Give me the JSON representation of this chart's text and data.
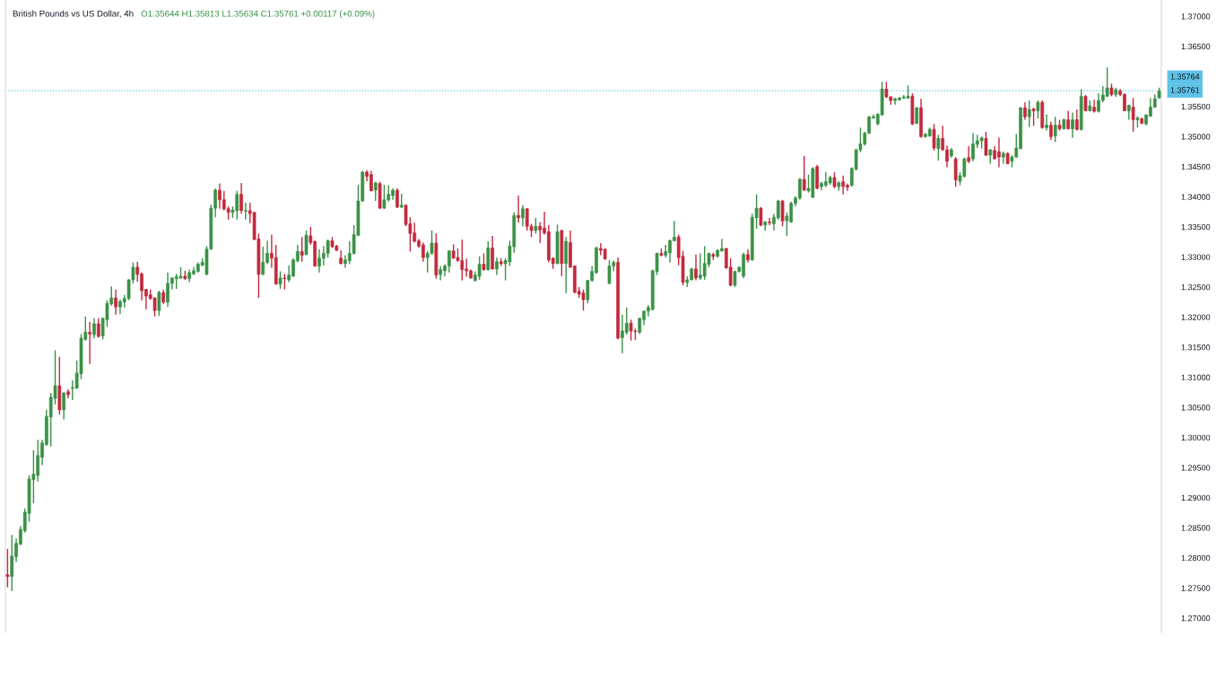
{
  "chart_data": {
    "type": "candlestick",
    "title": "British Pounds vs US Dollar, 4h",
    "subtitle": "O1.35644 H1.35813 L1.35634 C1.35761 +0.00117 (+0.09%)",
    "categories": [
      null,
      null,
      null,
      null,
      null,
      null,
      null,
      null,
      null,
      null,
      null,
      null,
      null,
      null,
      null,
      null,
      null,
      null,
      null,
      null,
      null,
      null,
      null,
      null,
      null,
      null,
      null,
      null,
      null,
      null,
      null,
      null,
      null,
      null,
      null,
      null,
      null,
      null,
      null,
      null,
      null,
      null,
      null,
      null,
      null,
      null,
      null,
      null,
      null,
      null,
      null,
      null,
      null,
      null,
      null,
      null,
      null,
      null,
      null,
      null,
      null,
      null,
      null,
      null,
      null,
      null,
      null,
      null,
      null,
      null,
      null,
      null,
      null,
      null,
      null,
      null,
      null,
      null,
      null,
      null,
      null,
      null,
      null,
      null,
      null,
      null,
      null,
      null,
      null,
      null,
      null,
      null,
      null,
      null,
      null,
      null,
      null,
      null,
      null,
      null,
      null,
      null,
      null,
      null,
      null,
      null,
      null,
      null,
      null,
      null,
      null,
      null,
      null,
      null,
      null,
      null,
      null,
      null,
      null,
      null,
      null,
      null,
      null,
      null,
      null,
      null,
      null,
      null,
      null,
      null,
      null,
      null,
      null,
      null,
      null,
      null,
      null,
      null,
      null,
      null,
      null,
      null,
      null,
      null,
      null,
      null,
      null,
      null,
      null,
      null,
      null,
      null,
      null,
      null,
      null,
      null,
      null,
      null,
      null,
      null,
      null,
      null,
      null,
      null,
      null,
      null,
      null,
      null,
      null,
      null,
      null,
      null,
      null,
      null,
      null,
      null,
      null,
      null,
      null,
      null,
      null,
      null,
      null,
      null,
      null,
      null,
      null,
      null,
      null,
      null,
      null,
      null,
      null,
      null,
      null,
      null,
      null,
      null,
      null,
      null,
      null,
      null,
      null,
      null,
      null,
      null,
      null,
      null,
      null,
      null,
      null,
      null,
      null,
      null,
      null,
      null,
      null,
      null,
      null,
      null,
      null,
      null,
      null,
      null,
      null,
      null,
      null,
      null,
      null,
      null,
      null,
      null,
      null,
      null,
      null,
      null,
      null,
      null,
      null,
      null,
      null,
      null,
      null,
      null,
      null,
      null,
      null,
      null,
      null,
      null,
      null,
      null,
      null,
      null,
      null,
      null,
      null,
      null,
      null,
      null,
      null,
      null,
      null,
      null,
      null,
      null,
      null
    ],
    "ohlc": [
      [
        1.2772,
        1.2815,
        1.2751,
        1.2769
      ],
      [
        1.2769,
        1.2838,
        1.2745,
        1.2803
      ],
      [
        1.2802,
        1.2832,
        1.2793,
        1.2824
      ],
      [
        1.2823,
        1.2853,
        1.2821,
        1.2847
      ],
      [
        1.2845,
        1.2882,
        1.2842,
        1.2876
      ],
      [
        1.2874,
        1.2937,
        1.286,
        1.2931
      ],
      [
        1.293,
        1.2979,
        1.2891,
        1.2939
      ],
      [
        1.2937,
        1.2996,
        1.2927,
        1.297
      ],
      [
        1.2967,
        1.2996,
        1.2954,
        1.2991
      ],
      [
        1.2988,
        1.3046,
        1.2987,
        1.3035
      ],
      [
        1.3034,
        1.3074,
        1.2985,
        1.3067
      ],
      [
        1.3065,
        1.3145,
        1.3055,
        1.3086
      ],
      [
        1.3086,
        1.3134,
        1.3038,
        1.3046
      ],
      [
        1.3046,
        1.3076,
        1.303,
        1.3074
      ],
      [
        1.3076,
        1.308,
        1.3065,
        1.3071
      ],
      [
        1.3082,
        1.3095,
        1.3062,
        1.3083
      ],
      [
        1.3082,
        1.3128,
        1.3081,
        1.3107
      ],
      [
        1.3106,
        1.3172,
        1.3097,
        1.3165
      ],
      [
        1.3163,
        1.3201,
        1.3161,
        1.3175
      ],
      [
        1.3175,
        1.3192,
        1.3122,
        1.3172
      ],
      [
        1.3171,
        1.3198,
        1.3165,
        1.3189
      ],
      [
        1.3189,
        1.3198,
        1.3166,
        1.3168
      ],
      [
        1.3169,
        1.3199,
        1.3163,
        1.3198
      ],
      [
        1.3196,
        1.3228,
        1.3184,
        1.3223
      ],
      [
        1.3222,
        1.3251,
        1.3219,
        1.3232
      ],
      [
        1.3232,
        1.3246,
        1.3204,
        1.3217
      ],
      [
        1.3217,
        1.3229,
        1.3205,
        1.3226
      ],
      [
        1.3225,
        1.3237,
        1.3216,
        1.3231
      ],
      [
        1.3231,
        1.3263,
        1.3228,
        1.3262
      ],
      [
        1.3262,
        1.3291,
        1.3256,
        1.3283
      ],
      [
        1.3283,
        1.3292,
        1.3259,
        1.3271
      ],
      [
        1.3272,
        1.3274,
        1.3228,
        1.3244
      ],
      [
        1.3246,
        1.3247,
        1.3213,
        1.3235
      ],
      [
        1.3237,
        1.3246,
        1.3229,
        1.3231
      ],
      [
        1.3232,
        1.3233,
        1.3201,
        1.3211
      ],
      [
        1.3211,
        1.3244,
        1.3202,
        1.3241
      ],
      [
        1.3241,
        1.3246,
        1.3222,
        1.3225
      ],
      [
        1.3225,
        1.3274,
        1.3217,
        1.3256
      ],
      [
        1.3256,
        1.3266,
        1.3246,
        1.3265
      ],
      [
        1.3264,
        1.3272,
        1.3247,
        1.3267
      ],
      [
        1.3265,
        1.3283,
        1.3264,
        1.3268
      ],
      [
        1.3268,
        1.3277,
        1.3262,
        1.3264
      ],
      [
        1.3264,
        1.3279,
        1.3258,
        1.3274
      ],
      [
        1.3272,
        1.3283,
        1.327,
        1.3277
      ],
      [
        1.3276,
        1.3291,
        1.3274,
        1.3288
      ],
      [
        1.3286,
        1.3298,
        1.3285,
        1.3291
      ],
      [
        1.3271,
        1.3318,
        1.327,
        1.3313
      ],
      [
        1.3313,
        1.3387,
        1.3312,
        1.3381
      ],
      [
        1.3381,
        1.3414,
        1.3366,
        1.3411
      ],
      [
        1.3411,
        1.3422,
        1.338,
        1.3395
      ],
      [
        1.3395,
        1.341,
        1.3377,
        1.338
      ],
      [
        1.338,
        1.3384,
        1.3362,
        1.3374
      ],
      [
        1.3374,
        1.3384,
        1.3365,
        1.3378
      ],
      [
        1.3377,
        1.341,
        1.3362,
        1.3404
      ],
      [
        1.3404,
        1.3423,
        1.3372,
        1.3377
      ],
      [
        1.3376,
        1.339,
        1.3362,
        1.3377
      ],
      [
        1.3377,
        1.339,
        1.3356,
        1.3372
      ],
      [
        1.3374,
        1.3375,
        1.3328,
        1.3329
      ],
      [
        1.333,
        1.3339,
        1.3232,
        1.3271
      ],
      [
        1.3271,
        1.3317,
        1.327,
        1.3291
      ],
      [
        1.3291,
        1.3327,
        1.3288,
        1.3306
      ],
      [
        1.3306,
        1.3337,
        1.3282,
        1.3298
      ],
      [
        1.3299,
        1.332,
        1.3254,
        1.3255
      ],
      [
        1.3255,
        1.3276,
        1.3247,
        1.3265
      ],
      [
        1.3265,
        1.3272,
        1.3246,
        1.3264
      ],
      [
        1.3262,
        1.3286,
        1.3258,
        1.327
      ],
      [
        1.3268,
        1.3298,
        1.3267,
        1.3295
      ],
      [
        1.3294,
        1.332,
        1.3291,
        1.3309
      ],
      [
        1.3309,
        1.3333,
        1.3292,
        1.3303
      ],
      [
        1.3304,
        1.3344,
        1.3303,
        1.3336
      ],
      [
        1.3335,
        1.335,
        1.332,
        1.3324
      ],
      [
        1.3326,
        1.3327,
        1.3284,
        1.3285
      ],
      [
        1.3285,
        1.3313,
        1.3274,
        1.3298
      ],
      [
        1.3298,
        1.3318,
        1.3286,
        1.3306
      ],
      [
        1.3306,
        1.3329,
        1.3299,
        1.3327
      ],
      [
        1.3327,
        1.3333,
        1.3315,
        1.3317
      ],
      [
        1.3318,
        1.332,
        1.331,
        1.3311
      ],
      [
        1.3298,
        1.3311,
        1.3288,
        1.3289
      ],
      [
        1.3289,
        1.3303,
        1.3282,
        1.3295
      ],
      [
        1.3294,
        1.3326,
        1.3288,
        1.3306
      ],
      [
        1.3306,
        1.3353,
        1.3304,
        1.3337
      ],
      [
        1.3336,
        1.342,
        1.3335,
        1.3393
      ],
      [
        1.3393,
        1.3443,
        1.3392,
        1.3441
      ],
      [
        1.3441,
        1.3444,
        1.3426,
        1.3434
      ],
      [
        1.3437,
        1.3443,
        1.3409,
        1.341
      ],
      [
        1.3411,
        1.3425,
        1.3393,
        1.3423
      ],
      [
        1.3422,
        1.3425,
        1.338,
        1.3381
      ],
      [
        1.3381,
        1.342,
        1.338,
        1.3395
      ],
      [
        1.3395,
        1.3419,
        1.3392,
        1.3404
      ],
      [
        1.3402,
        1.3414,
        1.3395,
        1.3411
      ],
      [
        1.3411,
        1.3414,
        1.3381,
        1.3383
      ],
      [
        1.3383,
        1.3405,
        1.3381,
        1.3386
      ],
      [
        1.3386,
        1.3387,
        1.3351,
        1.3354
      ],
      [
        1.3355,
        1.3366,
        1.3309,
        1.3339
      ],
      [
        1.334,
        1.3357,
        1.3324,
        1.3326
      ],
      [
        1.3327,
        1.333,
        1.3315,
        1.3318
      ],
      [
        1.332,
        1.3324,
        1.3292,
        1.3299
      ],
      [
        1.3299,
        1.331,
        1.3274,
        1.3306
      ],
      [
        1.3306,
        1.3344,
        1.3304,
        1.3323
      ],
      [
        1.3323,
        1.3339,
        1.3264,
        1.327
      ],
      [
        1.3271,
        1.3285,
        1.3261,
        1.3279
      ],
      [
        1.3277,
        1.3288,
        1.3268,
        1.3285
      ],
      [
        1.3285,
        1.3311,
        1.3274,
        1.331
      ],
      [
        1.331,
        1.3321,
        1.3297,
        1.3298
      ],
      [
        1.3299,
        1.3314,
        1.3292,
        1.3294
      ],
      [
        1.3294,
        1.3329,
        1.3261,
        1.3279
      ],
      [
        1.328,
        1.3297,
        1.3267,
        1.3277
      ],
      [
        1.3277,
        1.3279,
        1.3264,
        1.3265
      ],
      [
        1.3261,
        1.3276,
        1.3259,
        1.327
      ],
      [
        1.3268,
        1.3301,
        1.3262,
        1.3288
      ],
      [
        1.3288,
        1.3306,
        1.3277,
        1.3279
      ],
      [
        1.3279,
        1.3326,
        1.3277,
        1.3315
      ],
      [
        1.3315,
        1.3335,
        1.3279,
        1.328
      ],
      [
        1.328,
        1.3299,
        1.327,
        1.3292
      ],
      [
        1.3292,
        1.3298,
        1.3285,
        1.3289
      ],
      [
        1.3289,
        1.3298,
        1.3261,
        1.3294
      ],
      [
        1.3292,
        1.3327,
        1.3285,
        1.3318
      ],
      [
        1.3317,
        1.3374,
        1.3307,
        1.3369
      ],
      [
        1.3369,
        1.3402,
        1.3357,
        1.3365
      ],
      [
        1.3365,
        1.3386,
        1.3351,
        1.338
      ],
      [
        1.338,
        1.3381,
        1.3344,
        1.3351
      ],
      [
        1.3351,
        1.3355,
        1.3333,
        1.3344
      ],
      [
        1.3344,
        1.3365,
        1.3339,
        1.3351
      ],
      [
        1.3351,
        1.3358,
        1.3323,
        1.3345
      ],
      [
        1.3348,
        1.3375,
        1.3337,
        1.334
      ],
      [
        1.3342,
        1.3353,
        1.3291,
        1.3295
      ],
      [
        1.3298,
        1.3299,
        1.328,
        1.3289
      ],
      [
        1.3289,
        1.3354,
        1.3288,
        1.3342
      ],
      [
        1.3344,
        1.3345,
        1.3268,
        1.3289
      ],
      [
        1.3289,
        1.3333,
        1.324,
        1.3326
      ],
      [
        1.3324,
        1.3344,
        1.3282,
        1.3283
      ],
      [
        1.3285,
        1.3286,
        1.324,
        1.3241
      ],
      [
        1.3243,
        1.325,
        1.3232,
        1.3238
      ],
      [
        1.324,
        1.3246,
        1.3211,
        1.3229
      ],
      [
        1.3229,
        1.3262,
        1.3223,
        1.3261
      ],
      [
        1.3261,
        1.3285,
        1.3259,
        1.3276
      ],
      [
        1.3274,
        1.3317,
        1.3272,
        1.3315
      ],
      [
        1.3314,
        1.3323,
        1.3303,
        1.3311
      ],
      [
        1.3313,
        1.3314,
        1.3295,
        1.3297
      ],
      [
        1.3256,
        1.3295,
        1.3255,
        1.3285
      ],
      [
        1.3285,
        1.3294,
        1.3276,
        1.3291
      ],
      [
        1.3291,
        1.3299,
        1.3163,
        1.3165
      ],
      [
        1.3166,
        1.3204,
        1.314,
        1.3177
      ],
      [
        1.3175,
        1.3216,
        1.3171,
        1.319
      ],
      [
        1.319,
        1.3196,
        1.3161,
        1.3177
      ],
      [
        1.3177,
        1.3181,
        1.3162,
        1.3176
      ],
      [
        1.3175,
        1.3199,
        1.3172,
        1.3198
      ],
      [
        1.3196,
        1.3211,
        1.3187,
        1.321
      ],
      [
        1.321,
        1.322,
        1.3201,
        1.3216
      ],
      [
        1.3213,
        1.3279,
        1.3211,
        1.3277
      ],
      [
        1.3276,
        1.3307,
        1.327,
        1.3306
      ],
      [
        1.3306,
        1.3314,
        1.3301,
        1.3303
      ],
      [
        1.3303,
        1.332,
        1.3299,
        1.3309
      ],
      [
        1.3307,
        1.3329,
        1.3291,
        1.3327
      ],
      [
        1.3327,
        1.336,
        1.3326,
        1.3333
      ],
      [
        1.3333,
        1.3337,
        1.3286,
        1.3299
      ],
      [
        1.3301,
        1.331,
        1.3253,
        1.3258
      ],
      [
        1.3258,
        1.3268,
        1.325,
        1.3262
      ],
      [
        1.3262,
        1.3282,
        1.3261,
        1.328
      ],
      [
        1.328,
        1.3304,
        1.3261,
        1.3265
      ],
      [
        1.3265,
        1.3306,
        1.3262,
        1.327
      ],
      [
        1.3268,
        1.3318,
        1.3262,
        1.3289
      ],
      [
        1.3288,
        1.3307,
        1.3283,
        1.3306
      ],
      [
        1.3304,
        1.3307,
        1.3295,
        1.3301
      ],
      [
        1.3301,
        1.3313,
        1.3299,
        1.3311
      ],
      [
        1.331,
        1.333,
        1.3309,
        1.3314
      ],
      [
        1.3314,
        1.3315,
        1.328,
        1.3282
      ],
      [
        1.3283,
        1.3298,
        1.3251,
        1.3253
      ],
      [
        1.3253,
        1.3277,
        1.325,
        1.3276
      ],
      [
        1.3276,
        1.3284,
        1.3274,
        1.3283
      ],
      [
        1.3268,
        1.3307,
        1.3265,
        1.3304
      ],
      [
        1.3304,
        1.3313,
        1.3291,
        1.3295
      ],
      [
        1.3295,
        1.3372,
        1.3294,
        1.3366
      ],
      [
        1.3365,
        1.3404,
        1.3347,
        1.3381
      ],
      [
        1.3381,
        1.3383,
        1.3351,
        1.3353
      ],
      [
        1.3353,
        1.336,
        1.3344,
        1.3358
      ],
      [
        1.3358,
        1.3365,
        1.3353,
        1.3357
      ],
      [
        1.3355,
        1.3372,
        1.3344,
        1.3366
      ],
      [
        1.3365,
        1.3395,
        1.3362,
        1.3393
      ],
      [
        1.3393,
        1.3395,
        1.3351,
        1.336
      ],
      [
        1.336,
        1.3374,
        1.3335,
        1.3368
      ],
      [
        1.3358,
        1.3392,
        1.3357,
        1.3389
      ],
      [
        1.3389,
        1.3401,
        1.3384,
        1.3398
      ],
      [
        1.3398,
        1.3431,
        1.3395,
        1.3429
      ],
      [
        1.3429,
        1.3468,
        1.341,
        1.3411
      ],
      [
        1.341,
        1.3437,
        1.3407,
        1.3414
      ],
      [
        1.3399,
        1.3449,
        1.3398,
        1.3447
      ],
      [
        1.345,
        1.3453,
        1.3413,
        1.3414
      ],
      [
        1.3417,
        1.3425,
        1.3411,
        1.3422
      ],
      [
        1.3419,
        1.3441,
        1.3416,
        1.3425
      ],
      [
        1.3423,
        1.3435,
        1.342,
        1.3432
      ],
      [
        1.3432,
        1.3441,
        1.3414,
        1.3417
      ],
      [
        1.3417,
        1.3426,
        1.341,
        1.3423
      ],
      [
        1.3425,
        1.3435,
        1.3404,
        1.3417
      ],
      [
        1.3419,
        1.3422,
        1.341,
        1.3416
      ],
      [
        1.3419,
        1.3449,
        1.3417,
        1.3447
      ],
      [
        1.3446,
        1.348,
        1.3444,
        1.3478
      ],
      [
        1.3478,
        1.3515,
        1.3474,
        1.3488
      ],
      [
        1.3488,
        1.3508,
        1.3485,
        1.3506
      ],
      [
        1.3506,
        1.3534,
        1.3504,
        1.3533
      ],
      [
        1.3531,
        1.3537,
        1.353,
        1.3533
      ],
      [
        1.3521,
        1.3539,
        1.3519,
        1.3537
      ],
      [
        1.3536,
        1.3591,
        1.3535,
        1.3579
      ],
      [
        1.3579,
        1.3591,
        1.3564,
        1.3566
      ],
      [
        1.3566,
        1.3567,
        1.3553,
        1.356
      ],
      [
        1.356,
        1.3564,
        1.3553,
        1.3563
      ],
      [
        1.3561,
        1.3566,
        1.356,
        1.3564
      ],
      [
        1.3564,
        1.3569,
        1.3563,
        1.3566
      ],
      [
        1.3564,
        1.3585,
        1.3563,
        1.3567
      ],
      [
        1.3567,
        1.3572,
        1.3519,
        1.3521
      ],
      [
        1.3522,
        1.3549,
        1.3521,
        1.3548
      ],
      [
        1.3548,
        1.3563,
        1.3498,
        1.35
      ],
      [
        1.35,
        1.3506,
        1.3498,
        1.3504
      ],
      [
        1.3501,
        1.3515,
        1.35,
        1.3512
      ],
      [
        1.3512,
        1.3521,
        1.3477,
        1.3481
      ],
      [
        1.348,
        1.3503,
        1.346,
        1.3497
      ],
      [
        1.3497,
        1.3518,
        1.3477,
        1.3478
      ],
      [
        1.3478,
        1.3485,
        1.3449,
        1.3459
      ],
      [
        1.3468,
        1.3481,
        1.3465,
        1.3478
      ],
      [
        1.3463,
        1.3466,
        1.3417,
        1.3428
      ],
      [
        1.3426,
        1.3441,
        1.3419,
        1.3435
      ],
      [
        1.3434,
        1.3465,
        1.3432,
        1.3463
      ],
      [
        1.3465,
        1.3484,
        1.3456,
        1.3459
      ],
      [
        1.3463,
        1.3506,
        1.3459,
        1.3488
      ],
      [
        1.3487,
        1.3503,
        1.3481,
        1.3493
      ],
      [
        1.3493,
        1.35,
        1.348,
        1.3498
      ],
      [
        1.3497,
        1.3508,
        1.3468,
        1.3469
      ],
      [
        1.3469,
        1.3479,
        1.3455,
        1.3478
      ],
      [
        1.3477,
        1.3484,
        1.3462,
        1.3463
      ],
      [
        1.3475,
        1.3498,
        1.3449,
        1.3466
      ],
      [
        1.3466,
        1.3475,
        1.3455,
        1.3472
      ],
      [
        1.3472,
        1.3474,
        1.3454,
        1.3455
      ],
      [
        1.3459,
        1.3469,
        1.3449,
        1.3466
      ],
      [
        1.3466,
        1.3504,
        1.3465,
        1.3481
      ],
      [
        1.348,
        1.3549,
        1.3479,
        1.3548
      ],
      [
        1.3548,
        1.3557,
        1.3528,
        1.3533
      ],
      [
        1.3533,
        1.356,
        1.3516,
        1.3545
      ],
      [
        1.3546,
        1.3548,
        1.3518,
        1.3543
      ],
      [
        1.3543,
        1.356,
        1.353,
        1.3557
      ],
      [
        1.3557,
        1.356,
        1.3513,
        1.3515
      ],
      [
        1.3515,
        1.3537,
        1.351,
        1.3519
      ],
      [
        1.3519,
        1.3525,
        1.3494,
        1.35
      ],
      [
        1.3501,
        1.3533,
        1.3491,
        1.3519
      ],
      [
        1.3519,
        1.3528,
        1.351,
        1.3513
      ],
      [
        1.3513,
        1.353,
        1.3512,
        1.3528
      ],
      [
        1.3528,
        1.3543,
        1.3512,
        1.3513
      ],
      [
        1.3513,
        1.354,
        1.3498,
        1.3528
      ],
      [
        1.3528,
        1.3545,
        1.351,
        1.3512
      ],
      [
        1.3512,
        1.3579,
        1.351,
        1.3567
      ],
      [
        1.3567,
        1.3569,
        1.3542,
        1.3543
      ],
      [
        1.3543,
        1.356,
        1.3542,
        1.3551
      ],
      [
        1.3549,
        1.3561,
        1.354,
        1.3542
      ],
      [
        1.3542,
        1.3572,
        1.354,
        1.356
      ],
      [
        1.356,
        1.3584,
        1.3557,
        1.3569
      ],
      [
        1.3567,
        1.3615,
        1.3566,
        1.3581
      ],
      [
        1.3581,
        1.3588,
        1.3567,
        1.357
      ],
      [
        1.357,
        1.3581,
        1.3566,
        1.3578
      ],
      [
        1.3576,
        1.3579,
        1.3567,
        1.357
      ],
      [
        1.357,
        1.3572,
        1.3542,
        1.3543
      ],
      [
        1.3543,
        1.3553,
        1.3528,
        1.3552
      ],
      [
        1.3549,
        1.3564,
        1.3508,
        1.3528
      ],
      [
        1.3528,
        1.3534,
        1.3515,
        1.3531
      ],
      [
        1.353,
        1.3531,
        1.3521,
        1.3522
      ],
      [
        1.3521,
        1.3537,
        1.3519,
        1.3536
      ],
      [
        1.3534,
        1.3564,
        1.3533,
        1.3549
      ],
      [
        1.3549,
        1.357,
        1.3548,
        1.3563
      ],
      [
        1.35644,
        1.35813,
        1.35634,
        1.35761
      ]
    ],
    "colors": [
      "#c3283c",
      "#3a9145",
      "#3a9145",
      "#3a9145",
      "#3a9145",
      "#3a9145",
      "#3a9145",
      "#3a9145",
      "#3a9145",
      "#3a9145",
      "#3a9145",
      "#3a9145",
      "#c3283c",
      "#3a9145",
      "#c3283c",
      "#3a9145",
      "#3a9145",
      "#3a9145",
      "#3a9145",
      "#c3283c",
      "#3a9145",
      "#c3283c",
      "#3a9145",
      "#3a9145",
      "#3a9145",
      "#c3283c",
      "#3a9145",
      "#3a9145",
      "#3a9145",
      "#3a9145",
      "#c3283c",
      "#c3283c",
      "#c3283c",
      "#c3283c",
      "#c3283c",
      "#3a9145",
      "#c3283c",
      "#3a9145",
      "#3a9145",
      "#3a9145",
      "#3a9145",
      "#c3283c",
      "#3a9145",
      "#3a9145",
      "#3a9145",
      "#3a9145",
      "#3a9145",
      "#3a9145",
      "#3a9145",
      "#c3283c",
      "#c3283c",
      "#c3283c",
      "#3a9145",
      "#3a9145",
      "#c3283c",
      "#3a9145",
      "#c3283c",
      "#c3283c",
      "#c3283c",
      "#3a9145",
      "#3a9145",
      "#c3283c",
      "#c3283c",
      "#3a9145",
      "#c3283c",
      "#3a9145",
      "#3a9145",
      "#3a9145",
      "#c3283c",
      "#3a9145",
      "#c3283c",
      "#c3283c",
      "#3a9145",
      "#3a9145",
      "#3a9145",
      "#c3283c",
      "#c3283c",
      "#c3283c",
      "#3a9145",
      "#3a9145",
      "#3a9145",
      "#3a9145",
      "#3a9145",
      "#c3283c",
      "#c3283c",
      "#3a9145",
      "#c3283c",
      "#3a9145",
      "#3a9145",
      "#3a9145",
      "#c3283c",
      "#3a9145",
      "#c3283c",
      "#c3283c",
      "#c3283c",
      "#c3283c",
      "#c3283c",
      "#3a9145",
      "#3a9145",
      "#c3283c",
      "#3a9145",
      "#3a9145",
      "#3a9145",
      "#c3283c",
      "#c3283c",
      "#c3283c",
      "#c3283c",
      "#c3283c",
      "#3a9145",
      "#3a9145",
      "#c3283c",
      "#3a9145",
      "#c3283c",
      "#3a9145",
      "#c3283c",
      "#3a9145",
      "#3a9145",
      "#3a9145",
      "#c3283c",
      "#3a9145",
      "#c3283c",
      "#c3283c",
      "#3a9145",
      "#c3283c",
      "#c3283c",
      "#c3283c",
      "#c3283c",
      "#3a9145",
      "#c3283c",
      "#3a9145",
      "#c3283c",
      "#c3283c",
      "#c3283c",
      "#c3283c",
      "#3a9145",
      "#3a9145",
      "#3a9145",
      "#c3283c",
      "#c3283c",
      "#3a9145",
      "#3a9145",
      "#c3283c",
      "#3a9145",
      "#3a9145",
      "#c3283c",
      "#c3283c",
      "#3a9145",
      "#3a9145",
      "#3a9145",
      "#3a9145",
      "#3a9145",
      "#c3283c",
      "#3a9145",
      "#3a9145",
      "#3a9145",
      "#c3283c",
      "#c3283c",
      "#3a9145",
      "#3a9145",
      "#c3283c",
      "#3a9145",
      "#3a9145",
      "#3a9145",
      "#c3283c",
      "#3a9145",
      "#3a9145",
      "#c3283c",
      "#c3283c",
      "#3a9145",
      "#3a9145",
      "#3a9145",
      "#c3283c",
      "#3a9145",
      "#3a9145",
      "#c3283c",
      "#3a9145",
      "#c3283c",
      "#3a9145",
      "#3a9145",
      "#c3283c",
      "#3a9145",
      "#3a9145",
      "#3a9145",
      "#3a9145",
      "#c3283c",
      "#3a9145",
      "#3a9145",
      "#c3283c",
      "#3a9145",
      "#3a9145",
      "#3a9145",
      "#c3283c",
      "#3a9145",
      "#c3283c",
      "#c3283c",
      "#3a9145",
      "#3a9145",
      "#3a9145",
      "#3a9145",
      "#3a9145",
      "#3a9145",
      "#3a9145",
      "#3a9145",
      "#c3283c",
      "#c3283c",
      "#3a9145",
      "#3a9145",
      "#3a9145",
      "#3a9145",
      "#c3283c",
      "#3a9145",
      "#c3283c",
      "#3a9145",
      "#3a9145",
      "#c3283c",
      "#3a9145",
      "#c3283c",
      "#c3283c",
      "#3a9145",
      "#c3283c",
      "#3a9145",
      "#3a9145",
      "#c3283c",
      "#3a9145",
      "#3a9145",
      "#3a9145",
      "#c3283c",
      "#3a9145",
      "#c3283c",
      "#c3283c",
      "#3a9145",
      "#c3283c",
      "#3a9145",
      "#3a9145",
      "#3a9145",
      "#c3283c",
      "#3a9145",
      "#c3283c",
      "#3a9145",
      "#c3283c",
      "#3a9145",
      "#c3283c",
      "#3a9145",
      "#c3283c",
      "#3a9145",
      "#c3283c",
      "#3a9145",
      "#c3283c",
      "#3a9145",
      "#c3283c",
      "#3a9145",
      "#c3283c",
      "#3a9145",
      "#3a9145",
      "#3a9145",
      "#c3283c",
      "#3a9145",
      "#c3283c",
      "#c3283c",
      "#3a9145",
      "#c3283c",
      "#3a9145",
      "#c3283c",
      "#3a9145",
      "#3a9145",
      "#3a9145",
      "#3a9145"
    ],
    "ylim": [
      1.2676,
      1.3727
    ],
    "yticks": [
      {
        "value": 1.27,
        "label": "1.27000"
      },
      {
        "value": 1.275,
        "label": "1.27500"
      },
      {
        "value": 1.28,
        "label": "1.28000"
      },
      {
        "value": 1.285,
        "label": "1.28500"
      },
      {
        "value": 1.29,
        "label": "1.29000"
      },
      {
        "value": 1.295,
        "label": "1.29500"
      },
      {
        "value": 1.3,
        "label": "1.30000"
      },
      {
        "value": 1.305,
        "label": "1.30500"
      },
      {
        "value": 1.31,
        "label": "1.31000"
      },
      {
        "value": 1.315,
        "label": "1.31500"
      },
      {
        "value": 1.32,
        "label": "1.32000"
      },
      {
        "value": 1.325,
        "label": "1.32500"
      },
      {
        "value": 1.33,
        "label": "1.33000"
      },
      {
        "value": 1.335,
        "label": "1.33500"
      },
      {
        "value": 1.34,
        "label": "1.34000"
      },
      {
        "value": 1.345,
        "label": "1.34500"
      },
      {
        "value": 1.35,
        "label": "1.35000"
      },
      {
        "value": 1.355,
        "label": "1.35500"
      },
      {
        "value": 1.365,
        "label": "1.36500"
      },
      {
        "value": 1.37,
        "label": "1.37000"
      }
    ],
    "ref_lines": [
      {
        "axis": "y",
        "value": 1.35761,
        "label": "1.35761",
        "color": "#5ec2e6",
        "line_style": "dotted"
      }
    ],
    "annotations": [
      "1.35764"
    ],
    "grid": false,
    "tick_labels": "y"
  }
}
